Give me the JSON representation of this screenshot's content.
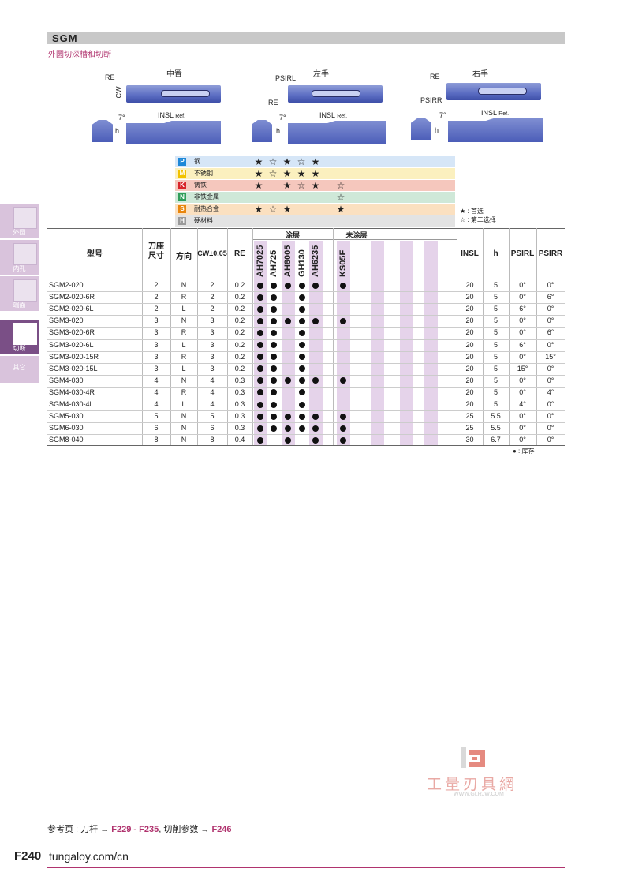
{
  "header": {
    "title": "SGM",
    "subtitle": "外圆切深槽和切断"
  },
  "views": {
    "center": "中置",
    "left": "左手",
    "right": "右手",
    "labels": {
      "re": "RE",
      "cw": "CW",
      "psirl": "PSIRL",
      "psirr": "PSIRR",
      "insl": "INSL",
      "ref": "Ref.",
      "angle": "7°",
      "h": "h"
    }
  },
  "sidebar": [
    {
      "label": "外圆",
      "active": false
    },
    {
      "label": "内孔",
      "active": false
    },
    {
      "label": "端面",
      "active": false
    },
    {
      "label": "切断",
      "active": true
    },
    {
      "label": "其它",
      "active": false
    }
  ],
  "materials": [
    {
      "code": "P",
      "name": "钢",
      "color": "#1e88d8",
      "bg": "#d6e6f7",
      "stars": [
        "★",
        "☆",
        "★",
        "☆",
        "★",
        "",
        ""
      ]
    },
    {
      "code": "M",
      "name": "不锈钢",
      "color": "#f2c200",
      "bg": "#fbf0bf",
      "stars": [
        "★",
        "☆",
        "★",
        "★",
        "★",
        "",
        ""
      ]
    },
    {
      "code": "K",
      "name": "铸铁",
      "color": "#d8232a",
      "bg": "#f5c7bd",
      "stars": [
        "★",
        "",
        "★",
        "☆",
        "★",
        "",
        "☆"
      ]
    },
    {
      "code": "N",
      "name": "非铁金属",
      "color": "#2f9e5a",
      "bg": "#cfe8d8",
      "stars": [
        "",
        "",
        "",
        "",
        "",
        "",
        "☆"
      ]
    },
    {
      "code": "S",
      "name": "耐热合金",
      "color": "#e8860d",
      "bg": "#fbe0c0",
      "stars": [
        "★",
        "☆",
        "★",
        "",
        "",
        "",
        "★"
      ]
    },
    {
      "code": "H",
      "name": "硬材料",
      "color": "#9a9a9a",
      "bg": "#e3e3e3",
      "stars": [
        "",
        "",
        "",
        "",
        "",
        "",
        ""
      ]
    }
  ],
  "legend": {
    "preferred": "★ : 首选",
    "second": "☆ : 第二选择",
    "stock": "● : 库存"
  },
  "table": {
    "headers": {
      "model": "型号",
      "seat": "刀座\n尺寸",
      "direction": "方向",
      "cw": "CW±0.05",
      "re": "RE",
      "coated": "涂层",
      "uncoated": "未涂层",
      "insl": "INSL",
      "h": "h",
      "psirl": "PSIRL",
      "psirr": "PSIRR"
    },
    "grades": [
      "AH7025",
      "AH725",
      "AH8005",
      "GH130",
      "AH6235",
      "",
      "KS05F"
    ],
    "rows": [
      {
        "model": "SGM2-020",
        "seat": "2",
        "dir": "N",
        "cw": "2",
        "re": "0.2",
        "stock": [
          1,
          1,
          1,
          1,
          1,
          0,
          1
        ],
        "insl": "20",
        "h": "5",
        "psirl": "0°",
        "psirr": "0°"
      },
      {
        "model": "SGM2-020-6R",
        "seat": "2",
        "dir": "R",
        "cw": "2",
        "re": "0.2",
        "stock": [
          1,
          1,
          0,
          1,
          0,
          0,
          0
        ],
        "insl": "20",
        "h": "5",
        "psirl": "0°",
        "psirr": "6°"
      },
      {
        "model": "SGM2-020-6L",
        "seat": "2",
        "dir": "L",
        "cw": "2",
        "re": "0.2",
        "stock": [
          1,
          1,
          0,
          1,
          0,
          0,
          0
        ],
        "insl": "20",
        "h": "5",
        "psirl": "6°",
        "psirr": "0°"
      },
      {
        "model": "SGM3-020",
        "seat": "3",
        "dir": "N",
        "cw": "3",
        "re": "0.2",
        "stock": [
          1,
          1,
          1,
          1,
          1,
          0,
          1
        ],
        "insl": "20",
        "h": "5",
        "psirl": "0°",
        "psirr": "0°"
      },
      {
        "model": "SGM3-020-6R",
        "seat": "3",
        "dir": "R",
        "cw": "3",
        "re": "0.2",
        "stock": [
          1,
          1,
          0,
          1,
          0,
          0,
          0
        ],
        "insl": "20",
        "h": "5",
        "psirl": "0°",
        "psirr": "6°"
      },
      {
        "model": "SGM3-020-6L",
        "seat": "3",
        "dir": "L",
        "cw": "3",
        "re": "0.2",
        "stock": [
          1,
          1,
          0,
          1,
          0,
          0,
          0
        ],
        "insl": "20",
        "h": "5",
        "psirl": "6°",
        "psirr": "0°"
      },
      {
        "model": "SGM3-020-15R",
        "seat": "3",
        "dir": "R",
        "cw": "3",
        "re": "0.2",
        "stock": [
          1,
          1,
          0,
          1,
          0,
          0,
          0
        ],
        "insl": "20",
        "h": "5",
        "psirl": "0°",
        "psirr": "15°"
      },
      {
        "model": "SGM3-020-15L",
        "seat": "3",
        "dir": "L",
        "cw": "3",
        "re": "0.2",
        "stock": [
          1,
          1,
          0,
          1,
          0,
          0,
          0
        ],
        "insl": "20",
        "h": "5",
        "psirl": "15°",
        "psirr": "0°"
      },
      {
        "model": "SGM4-030",
        "seat": "4",
        "dir": "N",
        "cw": "4",
        "re": "0.3",
        "stock": [
          1,
          1,
          1,
          1,
          1,
          0,
          1
        ],
        "insl": "20",
        "h": "5",
        "psirl": "0°",
        "psirr": "0°"
      },
      {
        "model": "SGM4-030-4R",
        "seat": "4",
        "dir": "R",
        "cw": "4",
        "re": "0.3",
        "stock": [
          1,
          1,
          0,
          1,
          0,
          0,
          0
        ],
        "insl": "20",
        "h": "5",
        "psirl": "0°",
        "psirr": "4°"
      },
      {
        "model": "SGM4-030-4L",
        "seat": "4",
        "dir": "L",
        "cw": "4",
        "re": "0.3",
        "stock": [
          1,
          1,
          0,
          1,
          0,
          0,
          0
        ],
        "insl": "20",
        "h": "5",
        "psirl": "4°",
        "psirr": "0°"
      },
      {
        "model": "SGM5-030",
        "seat": "5",
        "dir": "N",
        "cw": "5",
        "re": "0.3",
        "stock": [
          1,
          1,
          1,
          1,
          1,
          0,
          1
        ],
        "insl": "25",
        "h": "5.5",
        "psirl": "0°",
        "psirr": "0°"
      },
      {
        "model": "SGM6-030",
        "seat": "6",
        "dir": "N",
        "cw": "6",
        "re": "0.3",
        "stock": [
          1,
          1,
          1,
          1,
          1,
          0,
          1
        ],
        "insl": "25",
        "h": "5.5",
        "psirl": "0°",
        "psirr": "0°"
      },
      {
        "model": "SGM8-040",
        "seat": "8",
        "dir": "N",
        "cw": "8",
        "re": "0.4",
        "stock": [
          1,
          0,
          1,
          0,
          1,
          0,
          1
        ],
        "insl": "30",
        "h": "6.7",
        "psirl": "0°",
        "psirr": "0°"
      }
    ]
  },
  "watermark": {
    "text": "工量刃具網",
    "url": "WWW.GLRJW.COM"
  },
  "footer": {
    "ref_prefix": "参考页 :  刀杆 →",
    "ref_holder": "F229 - F235",
    "ref_middle": ", 切削参数 →",
    "ref_params": "F246",
    "page": "F240",
    "site": "tungaloy.com/cn"
  }
}
